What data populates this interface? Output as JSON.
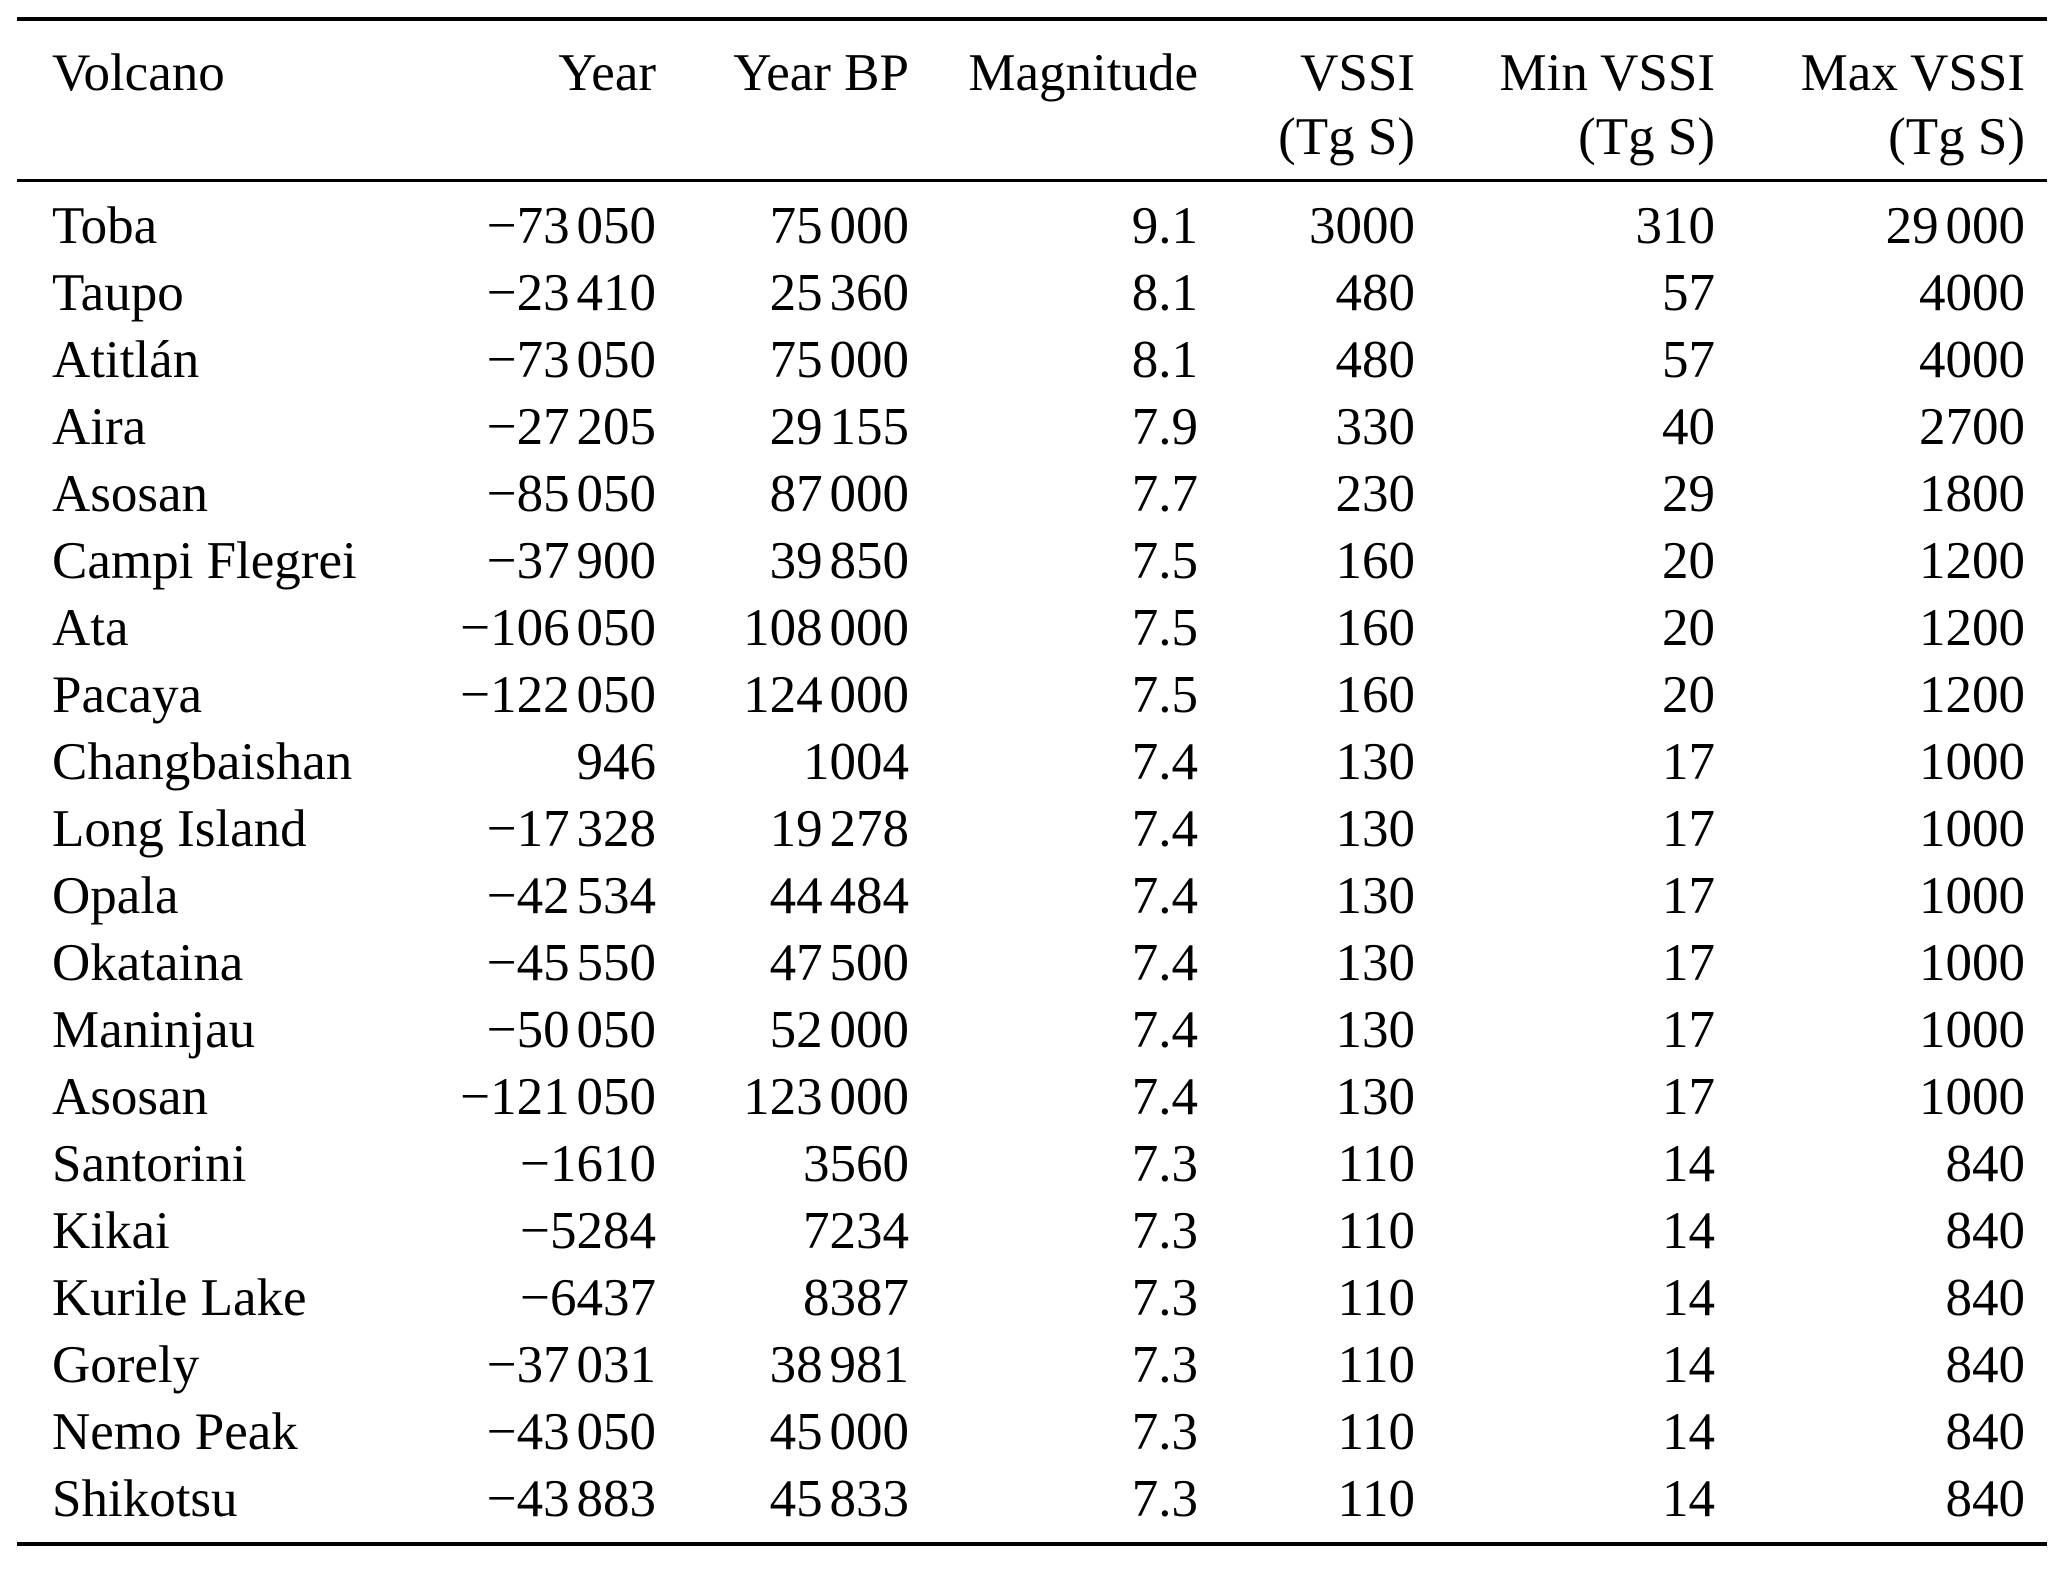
{
  "table": {
    "columns": [
      {
        "label": "Volcano",
        "sub": ""
      },
      {
        "label": "Year",
        "sub": ""
      },
      {
        "label": "Year BP",
        "sub": ""
      },
      {
        "label": "Magnitude",
        "sub": ""
      },
      {
        "label": "VSSI",
        "sub": "(Tg S)"
      },
      {
        "label": "Min VSSI",
        "sub": "(Tg S)"
      },
      {
        "label": "Max VSSI",
        "sub": "(Tg S)"
      }
    ],
    "rows": [
      [
        "Toba",
        "−73 050",
        "75 000",
        "9.1",
        "3000",
        "310",
        "29 000"
      ],
      [
        "Taupo",
        "−23 410",
        "25 360",
        "8.1",
        "480",
        "57",
        "4000"
      ],
      [
        "Atitlán",
        "−73 050",
        "75 000",
        "8.1",
        "480",
        "57",
        "4000"
      ],
      [
        "Aira",
        "−27 205",
        "29 155",
        "7.9",
        "330",
        "40",
        "2700"
      ],
      [
        "Asosan",
        "−85 050",
        "87 000",
        "7.7",
        "230",
        "29",
        "1800"
      ],
      [
        "Campi Flegrei",
        "−37 900",
        "39 850",
        "7.5",
        "160",
        "20",
        "1200"
      ],
      [
        "Ata",
        "−106 050",
        "108 000",
        "7.5",
        "160",
        "20",
        "1200"
      ],
      [
        "Pacaya",
        "−122 050",
        "124 000",
        "7.5",
        "160",
        "20",
        "1200"
      ],
      [
        "Changbaishan",
        "946",
        "1004",
        "7.4",
        "130",
        "17",
        "1000"
      ],
      [
        "Long Island",
        "−17 328",
        "19 278",
        "7.4",
        "130",
        "17",
        "1000"
      ],
      [
        "Opala",
        "−42 534",
        "44 484",
        "7.4",
        "130",
        "17",
        "1000"
      ],
      [
        "Okataina",
        "−45 550",
        "47 500",
        "7.4",
        "130",
        "17",
        "1000"
      ],
      [
        "Maninjau",
        "−50 050",
        "52 000",
        "7.4",
        "130",
        "17",
        "1000"
      ],
      [
        "Asosan",
        "−121 050",
        "123 000",
        "7.4",
        "130",
        "17",
        "1000"
      ],
      [
        "Santorini",
        "−1610",
        "3560",
        "7.3",
        "110",
        "14",
        "840"
      ],
      [
        "Kikai",
        "−5284",
        "7234",
        "7.3",
        "110",
        "14",
        "840"
      ],
      [
        "Kurile Lake",
        "−6437",
        "8387",
        "7.3",
        "110",
        "14",
        "840"
      ],
      [
        "Gorely",
        "−37 031",
        "38 981",
        "7.3",
        "110",
        "14",
        "840"
      ],
      [
        "Nemo Peak",
        "−43 050",
        "45 000",
        "7.3",
        "110",
        "14",
        "840"
      ],
      [
        "Shikotsu",
        "−43 883",
        "45 833",
        "7.3",
        "110",
        "14",
        "840"
      ]
    ]
  },
  "colors": {
    "text": "#000000",
    "rule": "#000000",
    "background": "#ffffff"
  }
}
